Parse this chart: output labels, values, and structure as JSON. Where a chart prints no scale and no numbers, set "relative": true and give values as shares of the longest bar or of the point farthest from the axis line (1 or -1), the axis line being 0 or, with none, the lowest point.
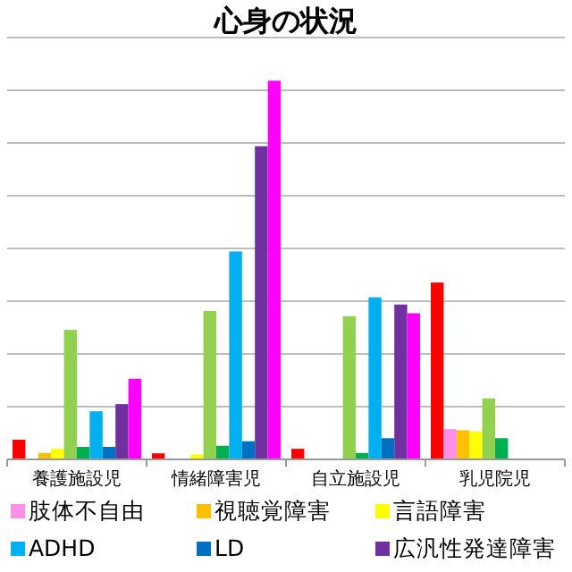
{
  "chart_data": {
    "type": "bar",
    "title": "心身の状況",
    "relative": true,
    "grid": "y",
    "legend": "bottom",
    "categories": [
      "養護施設児",
      "情緒障害児",
      "自立施設児",
      "乳児院児"
    ],
    "series": [
      {
        "color": "#ff0000",
        "values": [
          0.052,
          0.016,
          0.028,
          0.467
        ]
      },
      {
        "name": "肢体不自由",
        "color": "#ff8ee8",
        "values": [
          null,
          0,
          0,
          0.08
        ]
      },
      {
        "name": "視聴覚障害",
        "color": "#ffc000",
        "values": [
          0.017,
          0,
          0,
          0.077
        ]
      },
      {
        "name": "言語障害",
        "color": "#ffff00",
        "values": [
          0.028,
          0.013,
          null,
          0.074
        ]
      },
      {
        "color": "#92d050",
        "values": [
          0.342,
          0.392,
          0.378,
          0.161
        ]
      },
      {
        "color": "#00b050",
        "values": [
          0.033,
          0.036,
          0.017,
          0.056
        ]
      },
      {
        "name": "ADHD",
        "color": "#00b0f0",
        "values": [
          0.127,
          0.549,
          0.428,
          null
        ]
      },
      {
        "name": "LD",
        "color": "#0070c0",
        "values": [
          0.033,
          0.048,
          0.056,
          null
        ]
      },
      {
        "name": "広汎性発達障害",
        "color": "#7030a0",
        "values": [
          0.146,
          0.827,
          0.409,
          null
        ]
      },
      {
        "color": "#ff00ff",
        "values": [
          0.213,
          1,
          0.386,
          null
        ]
      }
    ]
  }
}
